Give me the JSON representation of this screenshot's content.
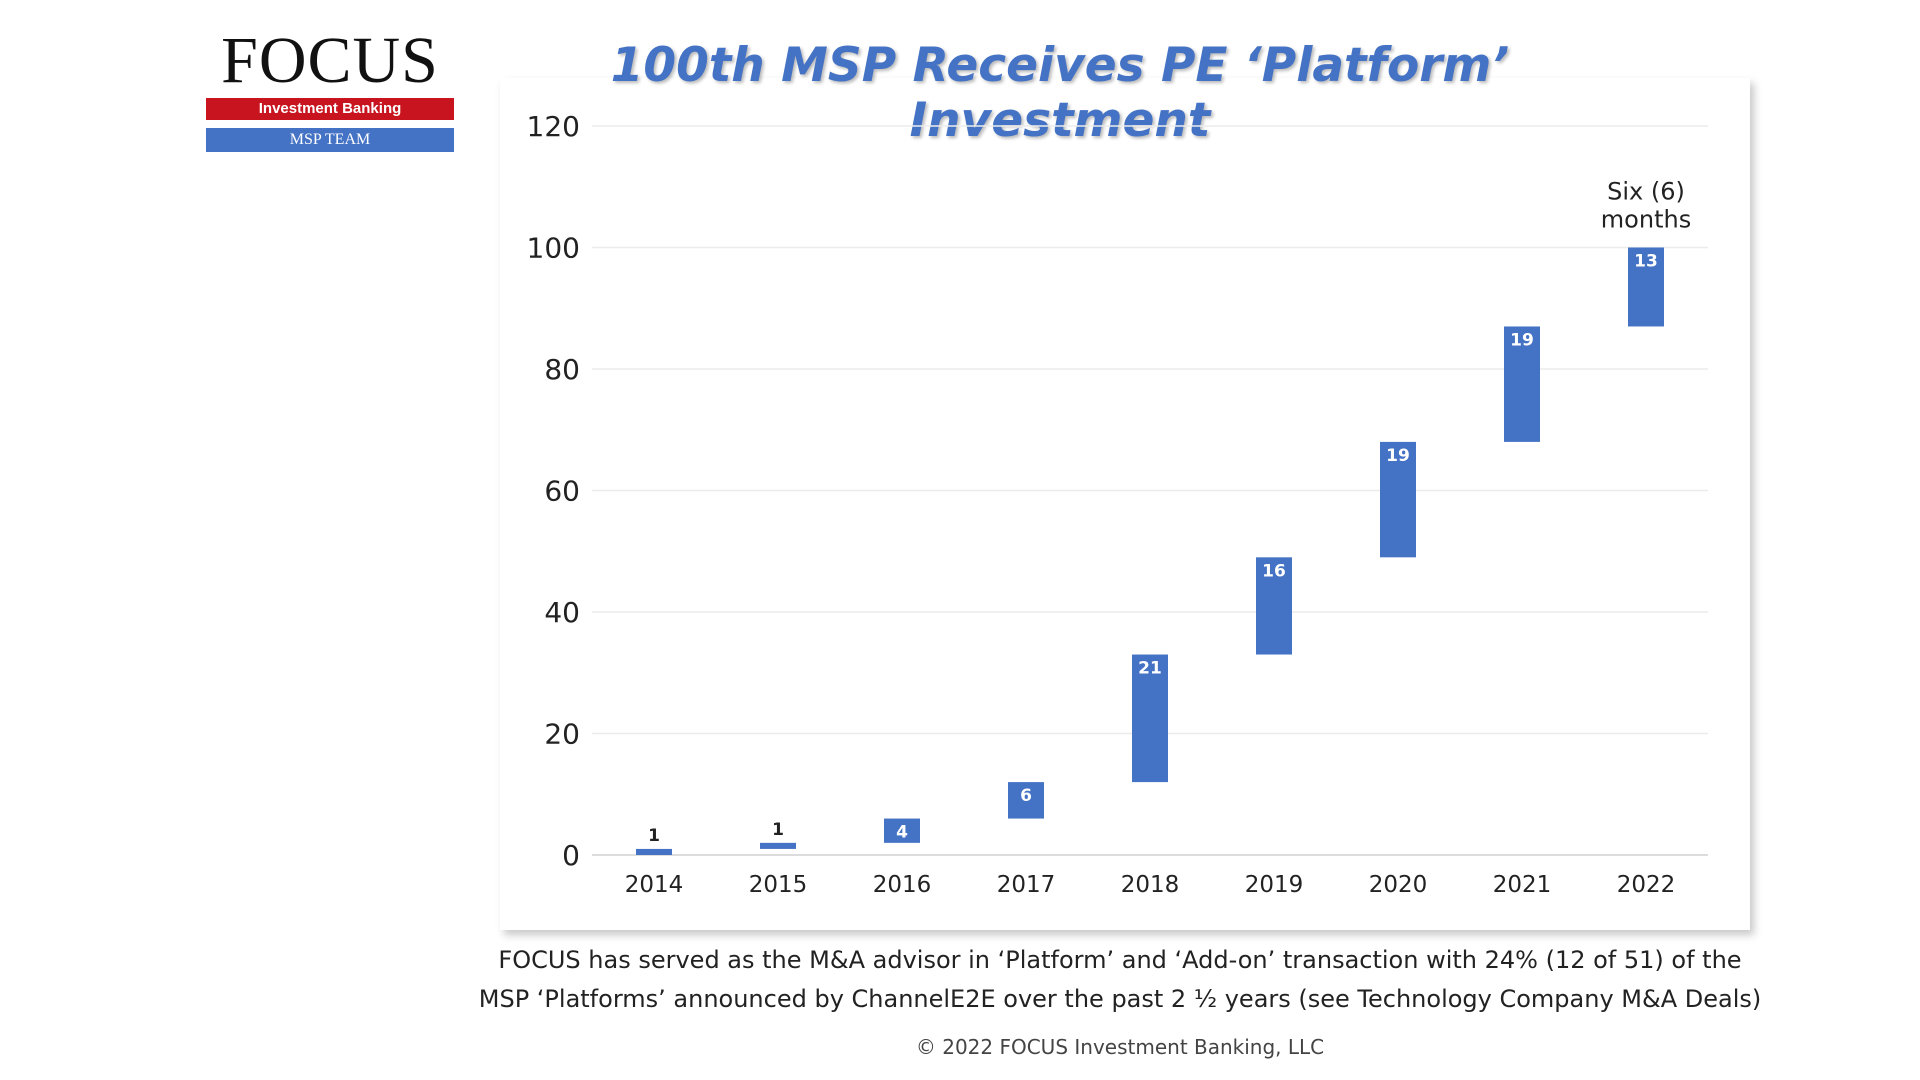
{
  "logo": {
    "wordmark": "FOCUS",
    "tagline": "Investment Banking",
    "team": "MSP TEAM"
  },
  "chart_data": {
    "type": "bar",
    "subtype": "waterfall",
    "title": "100th MSP Receives PE ‘Platform’ Investment",
    "categories": [
      "2014",
      "2015",
      "2016",
      "2017",
      "2018",
      "2019",
      "2020",
      "2021",
      "2022"
    ],
    "values": [
      1,
      1,
      4,
      6,
      21,
      16,
      19,
      19,
      13
    ],
    "ylim": [
      0,
      120
    ],
    "yticks": [
      "0",
      "20",
      "40",
      "60",
      "80",
      "100",
      "120"
    ],
    "grid": true,
    "bar_color": "#4472c4",
    "annotation": "Six (6) months"
  },
  "footnote": {
    "line1": "FOCUS has served as the M&A advisor in ‘Platform’ and ‘Add-on’ transaction with 24% (12 of 51) of the",
    "line2": "MSP ‘Platforms’ announced by ChannelE2E over the past 2 ½ years (see Technology Company M&A Deals)"
  },
  "copyright": "© 2022 FOCUS Investment Banking, LLC"
}
